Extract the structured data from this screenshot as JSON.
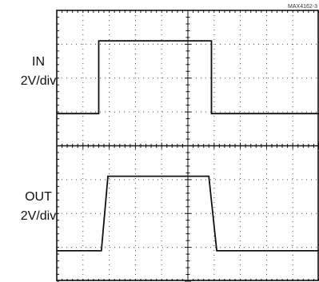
{
  "part_id": "MAX4162-3",
  "channels": [
    {
      "name": "IN",
      "scale": "2V/div"
    },
    {
      "name": "OUT",
      "scale": "2V/div"
    }
  ],
  "colors": {
    "background": "#ffffff",
    "trace": "#111111",
    "grid": "#111111",
    "frame": "#111111"
  },
  "chart_data": {
    "type": "line",
    "title": "",
    "xlabel": "",
    "ylabel": "",
    "grid": true,
    "xlim": [
      0,
      10
    ],
    "ylim": [
      0,
      8
    ],
    "x_divisions": 10,
    "y_divisions": 8,
    "series": [
      {
        "name": "IN",
        "x": [
          0,
          1.6,
          1.6,
          5.9,
          5.9,
          10
        ],
        "y": [
          4.95,
          4.95,
          7.1,
          7.1,
          4.95,
          4.95
        ]
      },
      {
        "name": "OUT",
        "x": [
          0,
          1.7,
          1.95,
          5.8,
          6.1,
          10
        ],
        "y": [
          0.9,
          0.9,
          3.1,
          3.1,
          0.9,
          0.9
        ]
      }
    ]
  }
}
